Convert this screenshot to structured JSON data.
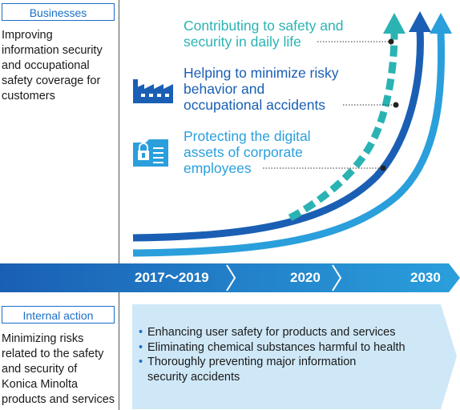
{
  "businesses": {
    "label": "Businesses",
    "text_lines": [
      "Improving",
      "information security",
      "and occupational",
      "safety coverage for",
      "customers"
    ]
  },
  "internal": {
    "label": "Internal action",
    "text_lines": [
      "Minimizing risks",
      "related to the safety",
      "and security of",
      "Konica Minolta",
      "products and services"
    ]
  },
  "items": [
    {
      "lines": [
        "Contributing to safety and",
        "security in daily life"
      ],
      "color": "#2bb3b3",
      "icon": "none"
    },
    {
      "lines": [
        "Helping to minimize risky",
        "behavior and",
        "occupational accidents"
      ],
      "color": "#1a5fb4",
      "icon": "factory-icon"
    },
    {
      "lines": [
        "Protecting the digital",
        "assets of corporate",
        "employees"
      ],
      "color": "#2a9fdc",
      "icon": "secure-folder-icon"
    }
  ],
  "timeline": {
    "labels": [
      "2017～2019",
      "2020",
      "2030"
    ],
    "color": "#1a6ec8"
  },
  "actions": [
    [
      "Enhancing user safety for products and services"
    ],
    [
      "Eliminating chemical substances harmful to health"
    ],
    [
      "Thoroughly preventing major information",
      "security accidents"
    ]
  ],
  "colors": {
    "accent": "#1a6ec8",
    "light": "#cfe8f7"
  }
}
